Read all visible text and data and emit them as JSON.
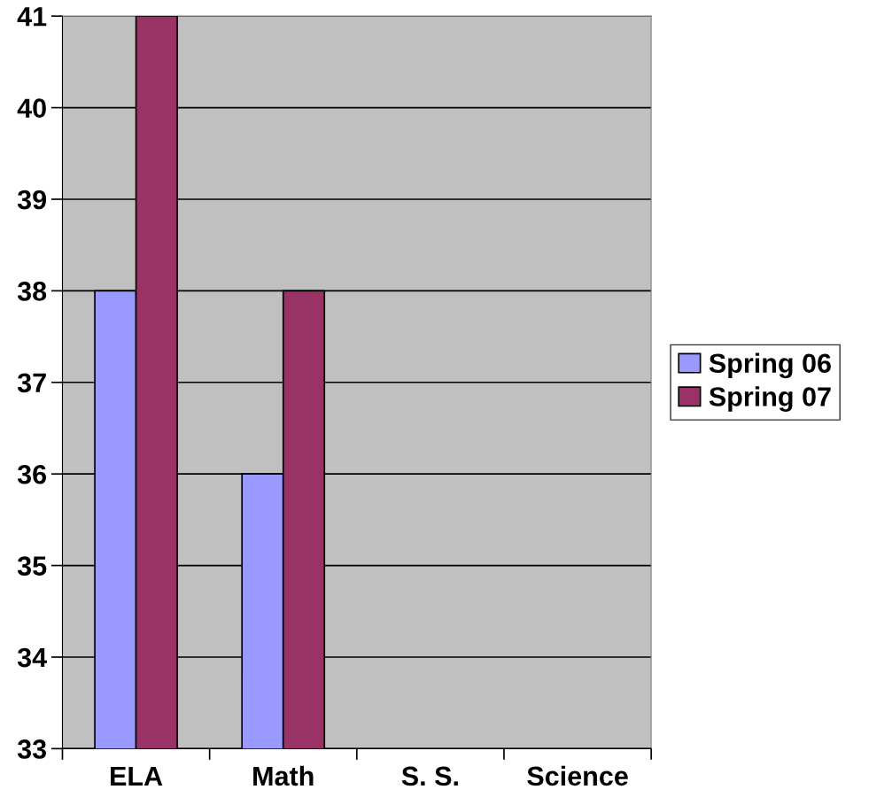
{
  "chart_data": {
    "type": "bar",
    "categories": [
      "ELA",
      "Math",
      "S. S.",
      "Science"
    ],
    "series": [
      {
        "name": "Spring 06",
        "color": "#9999ff",
        "values": [
          38,
          36,
          null,
          null
        ]
      },
      {
        "name": "Spring 07",
        "color": "#993366",
        "values": [
          41,
          38,
          null,
          null
        ]
      }
    ],
    "ylim": [
      33,
      41
    ],
    "yticks": [
      33,
      34,
      35,
      36,
      37,
      38,
      39,
      40,
      41
    ],
    "grid": "y",
    "legend": "right"
  }
}
